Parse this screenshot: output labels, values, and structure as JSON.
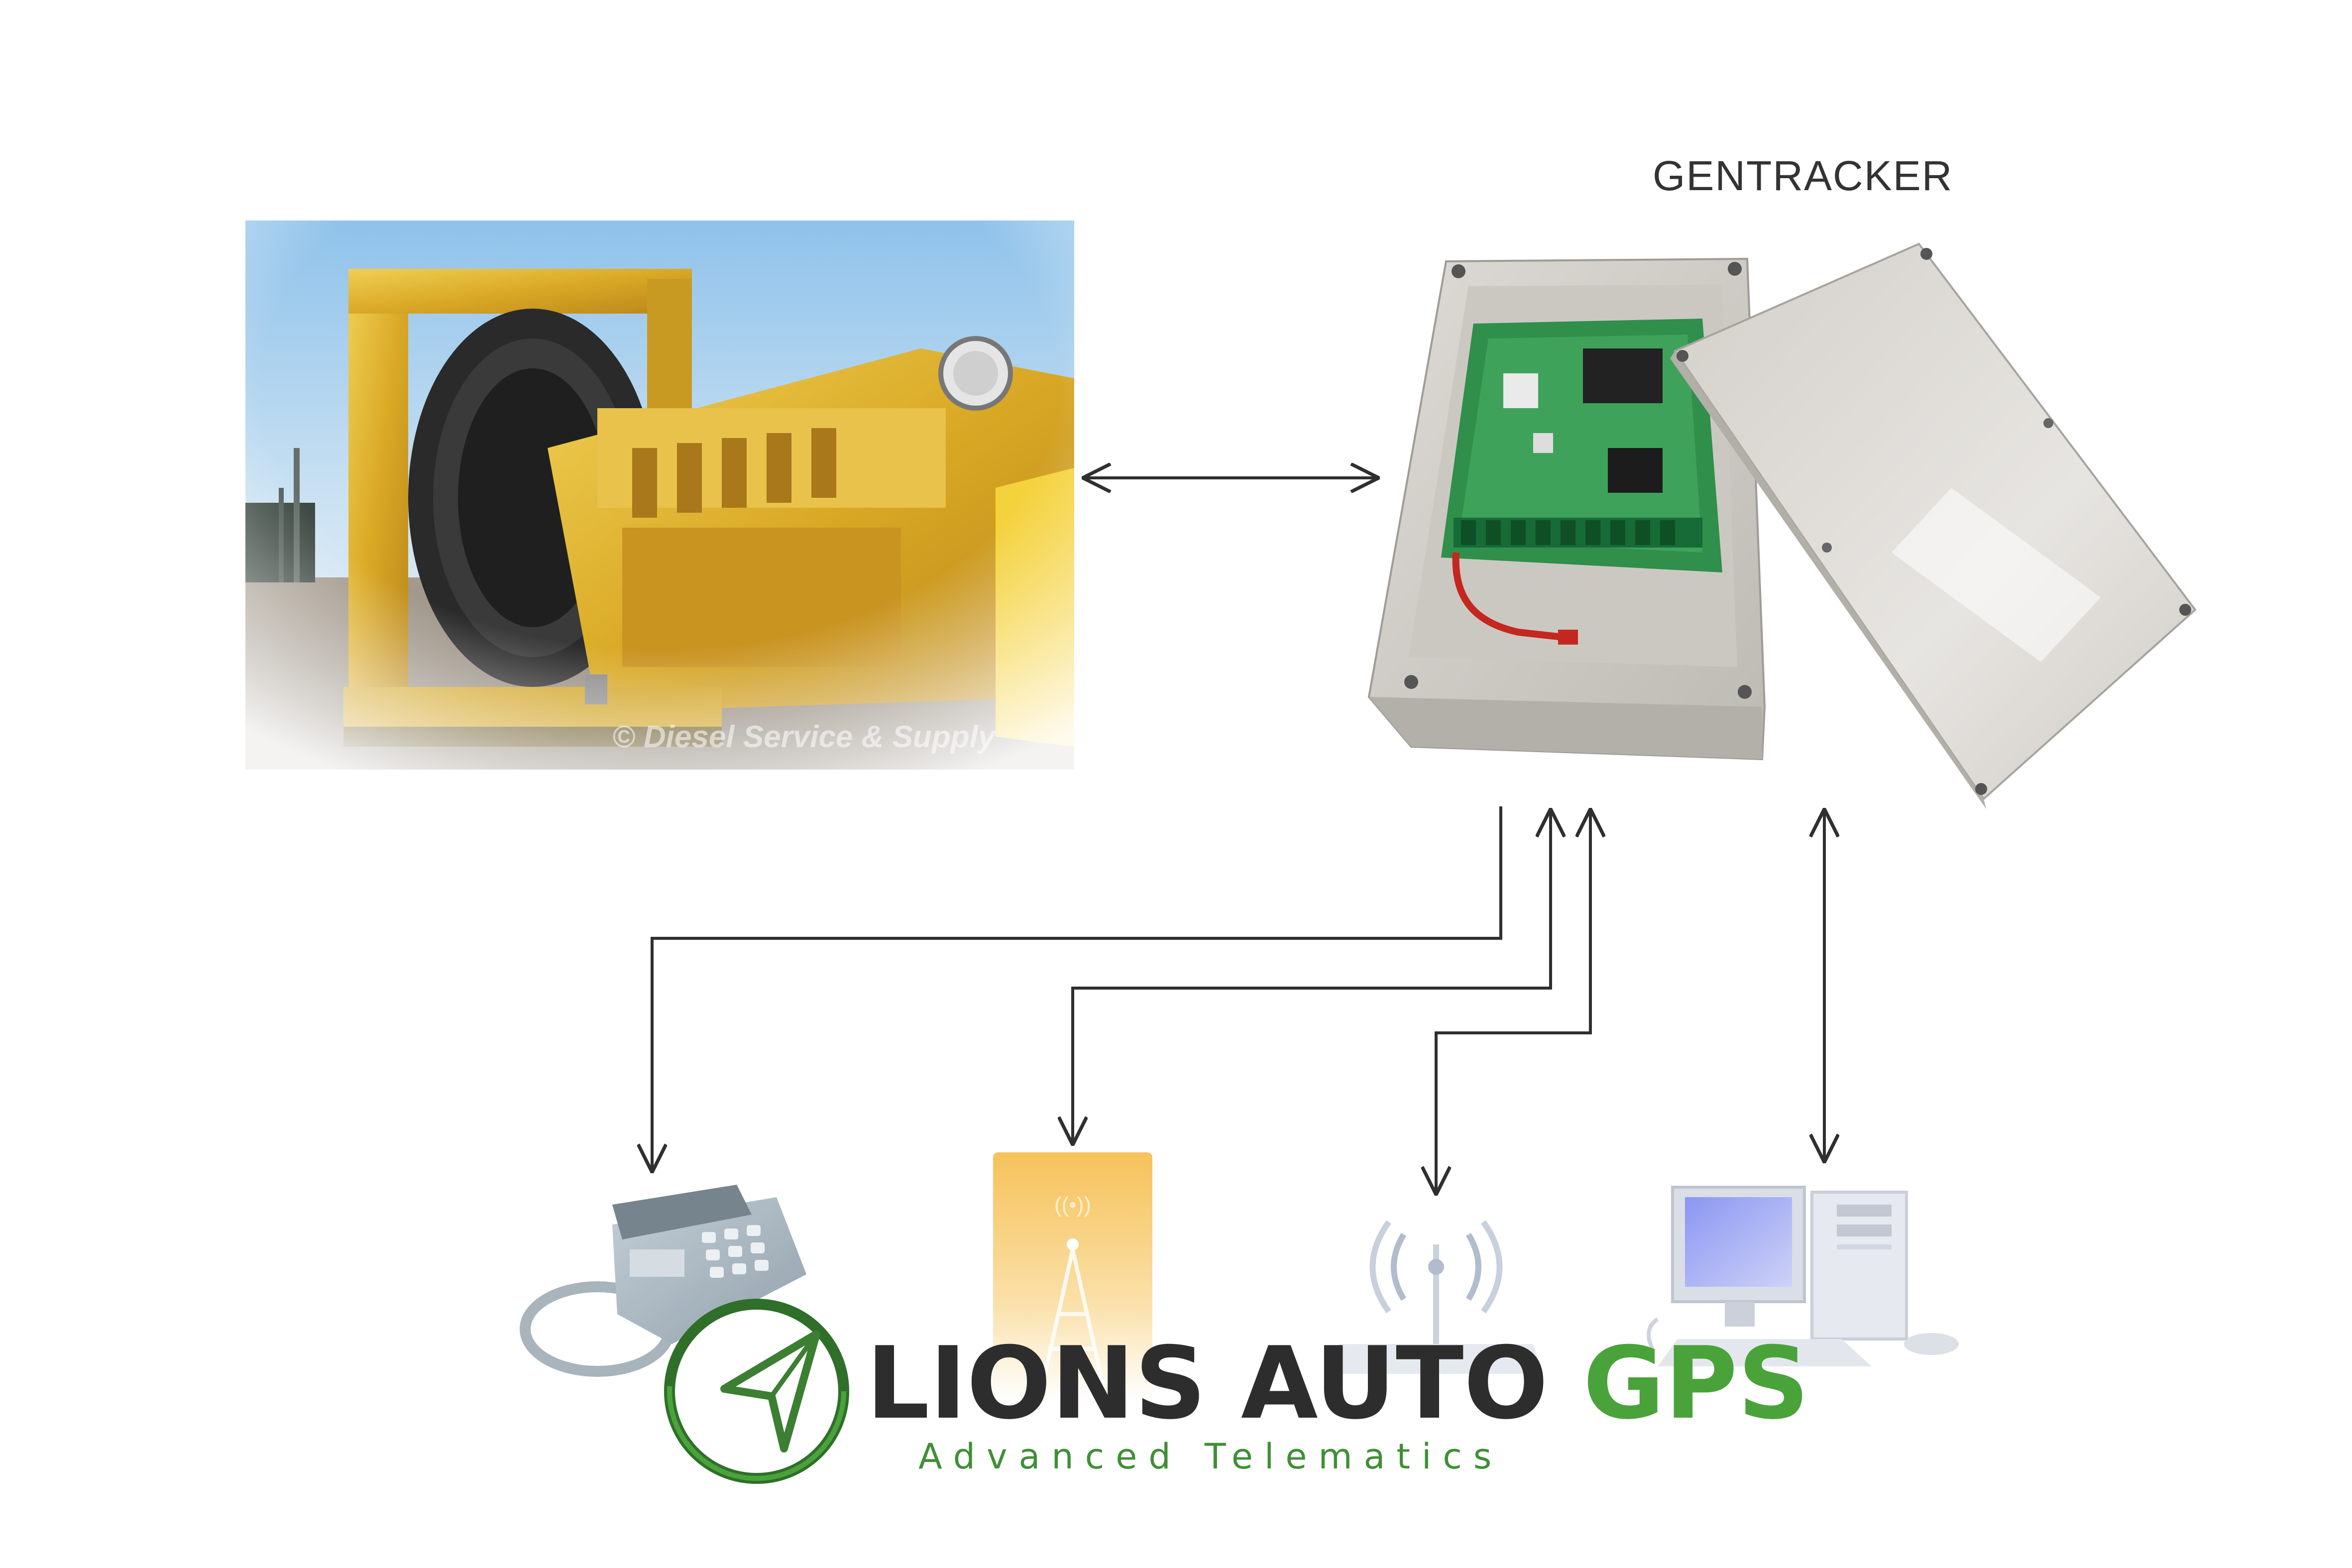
{
  "diagram": {
    "gentracker_label": "GENTRACKER",
    "generator_photo_credit": "© Diesel Service & Supply",
    "icons": {
      "generator": "generator-photo",
      "gentracker": "gentracker-box",
      "telephone": "telephone-icon",
      "sms": "sms-tower-icon",
      "wireless": "wireless-router-icon",
      "computer": "computer-icon"
    }
  },
  "brand": {
    "name_main": "LIONS AUTO ",
    "name_accent": "GPS",
    "tagline": "Advanced Telematics",
    "colors": {
      "green": "#4aa33a",
      "dark": "#2d2d2d"
    }
  }
}
